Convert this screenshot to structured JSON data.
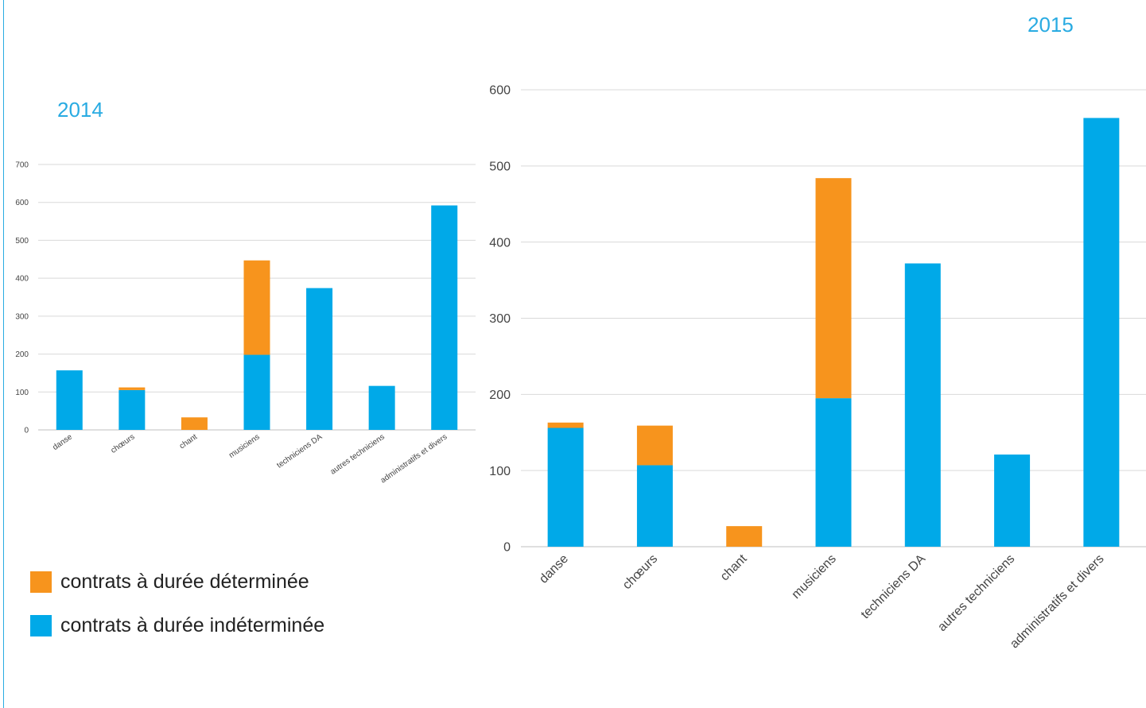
{
  "colors": {
    "cdd": "#f7941d",
    "cdi": "#00a9e8",
    "title": "#29abe2",
    "grid": "#d9d9d9",
    "axis_text": "#444444",
    "baseline": "#bfbfbf"
  },
  "legend": [
    {
      "key": "cdd",
      "label": "contrats à durée déterminée"
    },
    {
      "key": "cdi",
      "label": "contrats à durée indéterminée"
    }
  ],
  "chart_data": [
    {
      "type": "bar",
      "stacked": true,
      "title": "2014",
      "categories": [
        "danse",
        "chœurs",
        "chant",
        "musiciens",
        "techniciens DA",
        "autres techniciens",
        "administratifs et divers"
      ],
      "series": [
        {
          "name": "contrats à durée indéterminée",
          "color_key": "cdi",
          "values": [
            157,
            105,
            0,
            198,
            374,
            116,
            592
          ]
        },
        {
          "name": "contrats à durée déterminée",
          "color_key": "cdd",
          "values": [
            0,
            7,
            33,
            249,
            0,
            0,
            0
          ]
        }
      ],
      "ylim": [
        0,
        700
      ],
      "yticks": [
        0,
        100,
        200,
        300,
        400,
        500,
        600,
        700
      ],
      "xlabel": "",
      "ylabel": "",
      "grid": true
    },
    {
      "type": "bar",
      "stacked": true,
      "title": "2015",
      "categories": [
        "danse",
        "chœurs",
        "chant",
        "musiciens",
        "techniciens DA",
        "autres techniciens",
        "administratifs et divers"
      ],
      "series": [
        {
          "name": "contrats à durée indéterminée",
          "color_key": "cdi",
          "values": [
            156,
            107,
            0,
            195,
            372,
            121,
            563
          ]
        },
        {
          "name": "contrats à durée déterminée",
          "color_key": "cdd",
          "values": [
            7,
            52,
            27,
            289,
            0,
            0,
            0
          ]
        }
      ],
      "ylim": [
        0,
        600
      ],
      "yticks": [
        0,
        100,
        200,
        300,
        400,
        500,
        600
      ],
      "xlabel": "",
      "ylabel": "",
      "grid": true
    }
  ]
}
